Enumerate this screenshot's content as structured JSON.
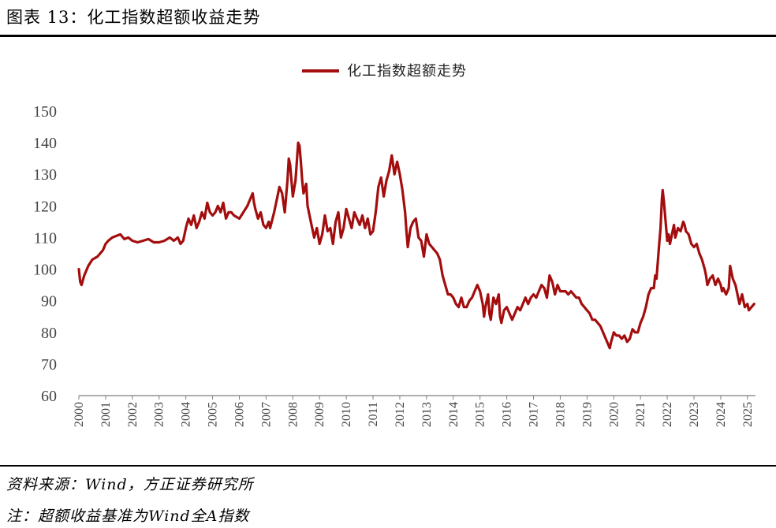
{
  "caption": "图表 13：化工指数超额收益走势",
  "source_note": "资料来源：Wind，方正证券研究所",
  "footnote": "注：超额收益基准为Wind全A指数",
  "colors": {
    "series": "#a30d0d",
    "axis": "#7f7f7f"
  },
  "chart_data": {
    "type": "line",
    "title": "",
    "xlabel": "",
    "ylabel": "",
    "legend": {
      "position": "top-center"
    },
    "grid": false,
    "ylim": [
      60,
      150
    ],
    "yticks": [
      60,
      70,
      80,
      90,
      100,
      110,
      120,
      130,
      140,
      150
    ],
    "xlim": [
      2000,
      2025.3
    ],
    "xticks": [
      "2000",
      "2001",
      "2002",
      "2003",
      "2004",
      "2005",
      "2006",
      "2007",
      "2008",
      "2009",
      "2010",
      "2011",
      "2012",
      "2013",
      "2014",
      "2015",
      "2016",
      "2017",
      "2018",
      "2019",
      "2020",
      "2021",
      "2022",
      "2023",
      "2024",
      "2025"
    ],
    "series": [
      {
        "name": "化工指数超额走势",
        "color": "#a30d0d",
        "points": [
          [
            2000.0,
            100
          ],
          [
            2000.05,
            96
          ],
          [
            2000.1,
            95
          ],
          [
            2000.2,
            98
          ],
          [
            2000.35,
            101
          ],
          [
            2000.5,
            103
          ],
          [
            2000.7,
            104
          ],
          [
            2000.9,
            106
          ],
          [
            2001.0,
            108
          ],
          [
            2001.1,
            109
          ],
          [
            2001.25,
            110
          ],
          [
            2001.4,
            110.5
          ],
          [
            2001.55,
            111
          ],
          [
            2001.7,
            109.5
          ],
          [
            2001.85,
            110
          ],
          [
            2002.0,
            109
          ],
          [
            2002.2,
            108.5
          ],
          [
            2002.4,
            109
          ],
          [
            2002.6,
            109.5
          ],
          [
            2002.8,
            108.5
          ],
          [
            2003.0,
            108.5
          ],
          [
            2003.2,
            109
          ],
          [
            2003.4,
            110
          ],
          [
            2003.55,
            109
          ],
          [
            2003.7,
            110
          ],
          [
            2003.8,
            108
          ],
          [
            2003.9,
            109
          ],
          [
            2004.0,
            113
          ],
          [
            2004.1,
            116
          ],
          [
            2004.2,
            114
          ],
          [
            2004.3,
            117
          ],
          [
            2004.4,
            113
          ],
          [
            2004.5,
            115
          ],
          [
            2004.6,
            118
          ],
          [
            2004.7,
            116
          ],
          [
            2004.8,
            121
          ],
          [
            2004.9,
            118
          ],
          [
            2005.0,
            117
          ],
          [
            2005.1,
            118
          ],
          [
            2005.2,
            120
          ],
          [
            2005.3,
            118
          ],
          [
            2005.4,
            121
          ],
          [
            2005.5,
            116
          ],
          [
            2005.6,
            118
          ],
          [
            2005.7,
            118
          ],
          [
            2005.8,
            117
          ],
          [
            2006.0,
            116
          ],
          [
            2006.15,
            118
          ],
          [
            2006.3,
            120
          ],
          [
            2006.4,
            122
          ],
          [
            2006.5,
            124
          ],
          [
            2006.55,
            121
          ],
          [
            2006.6,
            119
          ],
          [
            2006.7,
            116
          ],
          [
            2006.8,
            118
          ],
          [
            2006.9,
            114
          ],
          [
            2007.0,
            113
          ],
          [
            2007.1,
            115
          ],
          [
            2007.15,
            113
          ],
          [
            2007.3,
            118
          ],
          [
            2007.4,
            122
          ],
          [
            2007.5,
            126
          ],
          [
            2007.6,
            124
          ],
          [
            2007.7,
            118
          ],
          [
            2007.8,
            128
          ],
          [
            2007.85,
            135
          ],
          [
            2007.9,
            133
          ],
          [
            2008.0,
            123
          ],
          [
            2008.1,
            128
          ],
          [
            2008.2,
            140
          ],
          [
            2008.25,
            139
          ],
          [
            2008.3,
            134
          ],
          [
            2008.35,
            128
          ],
          [
            2008.4,
            124
          ],
          [
            2008.5,
            127
          ],
          [
            2008.55,
            120
          ],
          [
            2008.6,
            118
          ],
          [
            2008.7,
            114
          ],
          [
            2008.8,
            110
          ],
          [
            2008.9,
            113
          ],
          [
            2009.0,
            108
          ],
          [
            2009.1,
            111
          ],
          [
            2009.2,
            117
          ],
          [
            2009.3,
            112
          ],
          [
            2009.4,
            113
          ],
          [
            2009.5,
            108
          ],
          [
            2009.6,
            115
          ],
          [
            2009.7,
            118
          ],
          [
            2009.75,
            114
          ],
          [
            2009.8,
            110
          ],
          [
            2009.9,
            113
          ],
          [
            2010.0,
            119
          ],
          [
            2010.1,
            116
          ],
          [
            2010.2,
            113
          ],
          [
            2010.3,
            118
          ],
          [
            2010.4,
            116
          ],
          [
            2010.5,
            114
          ],
          [
            2010.6,
            117
          ],
          [
            2010.7,
            113
          ],
          [
            2010.8,
            116
          ],
          [
            2010.9,
            111
          ],
          [
            2011.0,
            112
          ],
          [
            2011.1,
            118
          ],
          [
            2011.2,
            126
          ],
          [
            2011.3,
            129
          ],
          [
            2011.4,
            123
          ],
          [
            2011.5,
            128
          ],
          [
            2011.6,
            131
          ],
          [
            2011.7,
            136
          ],
          [
            2011.8,
            130
          ],
          [
            2011.9,
            134
          ],
          [
            2012.0,
            130
          ],
          [
            2012.1,
            125
          ],
          [
            2012.2,
            118
          ],
          [
            2012.25,
            112
          ],
          [
            2012.3,
            107
          ],
          [
            2012.4,
            113
          ],
          [
            2012.5,
            115
          ],
          [
            2012.6,
            116
          ],
          [
            2012.7,
            110
          ],
          [
            2012.8,
            109
          ],
          [
            2012.9,
            104
          ],
          [
            2013.0,
            111
          ],
          [
            2013.1,
            108
          ],
          [
            2013.2,
            107
          ],
          [
            2013.3,
            106
          ],
          [
            2013.4,
            105
          ],
          [
            2013.5,
            103
          ],
          [
            2013.6,
            98
          ],
          [
            2013.7,
            95
          ],
          [
            2013.8,
            92
          ],
          [
            2013.9,
            92
          ],
          [
            2014.0,
            91
          ],
          [
            2014.1,
            89
          ],
          [
            2014.2,
            88
          ],
          [
            2014.3,
            91
          ],
          [
            2014.4,
            88
          ],
          [
            2014.5,
            88
          ],
          [
            2014.6,
            90
          ],
          [
            2014.7,
            91
          ],
          [
            2014.8,
            93
          ],
          [
            2014.9,
            95
          ],
          [
            2015.0,
            93
          ],
          [
            2015.1,
            89
          ],
          [
            2015.15,
            85
          ],
          [
            2015.2,
            88
          ],
          [
            2015.3,
            92
          ],
          [
            2015.35,
            86
          ],
          [
            2015.4,
            84
          ],
          [
            2015.5,
            91
          ],
          [
            2015.6,
            89
          ],
          [
            2015.7,
            92
          ],
          [
            2015.75,
            85
          ],
          [
            2015.8,
            83
          ],
          [
            2015.9,
            87
          ],
          [
            2016.0,
            88
          ],
          [
            2016.1,
            86
          ],
          [
            2016.2,
            84
          ],
          [
            2016.3,
            86
          ],
          [
            2016.4,
            88
          ],
          [
            2016.5,
            87
          ],
          [
            2016.6,
            89
          ],
          [
            2016.7,
            91
          ],
          [
            2016.8,
            89
          ],
          [
            2016.9,
            91
          ],
          [
            2017.0,
            92
          ],
          [
            2017.1,
            91
          ],
          [
            2017.2,
            93
          ],
          [
            2017.3,
            95
          ],
          [
            2017.4,
            94
          ],
          [
            2017.5,
            91
          ],
          [
            2017.6,
            98
          ],
          [
            2017.7,
            96
          ],
          [
            2017.8,
            92
          ],
          [
            2017.9,
            95
          ],
          [
            2018.0,
            93
          ],
          [
            2018.1,
            93
          ],
          [
            2018.2,
            93
          ],
          [
            2018.3,
            92
          ],
          [
            2018.4,
            93
          ],
          [
            2018.5,
            92
          ],
          [
            2018.6,
            91
          ],
          [
            2018.7,
            91
          ],
          [
            2018.8,
            89
          ],
          [
            2018.9,
            88
          ],
          [
            2019.0,
            87
          ],
          [
            2019.1,
            86
          ],
          [
            2019.2,
            84
          ],
          [
            2019.3,
            84
          ],
          [
            2019.4,
            83
          ],
          [
            2019.5,
            82
          ],
          [
            2019.6,
            80
          ],
          [
            2019.7,
            78
          ],
          [
            2019.8,
            76
          ],
          [
            2019.85,
            75
          ],
          [
            2019.9,
            77
          ],
          [
            2020.0,
            80
          ],
          [
            2020.1,
            79
          ],
          [
            2020.2,
            79
          ],
          [
            2020.3,
            78
          ],
          [
            2020.4,
            79
          ],
          [
            2020.5,
            77
          ],
          [
            2020.6,
            78
          ],
          [
            2020.7,
            81
          ],
          [
            2020.8,
            80
          ],
          [
            2020.9,
            80
          ],
          [
            2021.0,
            83
          ],
          [
            2021.1,
            85
          ],
          [
            2021.2,
            88
          ],
          [
            2021.3,
            92
          ],
          [
            2021.4,
            94
          ],
          [
            2021.5,
            94
          ],
          [
            2021.55,
            98
          ],
          [
            2021.6,
            97
          ],
          [
            2021.7,
            108
          ],
          [
            2021.75,
            113
          ],
          [
            2021.8,
            122
          ],
          [
            2021.83,
            125
          ],
          [
            2021.88,
            121
          ],
          [
            2021.95,
            114
          ],
          [
            2022.0,
            109
          ],
          [
            2022.05,
            111
          ],
          [
            2022.1,
            108
          ],
          [
            2022.2,
            112
          ],
          [
            2022.25,
            114
          ],
          [
            2022.3,
            110
          ],
          [
            2022.4,
            113
          ],
          [
            2022.5,
            112
          ],
          [
            2022.6,
            115
          ],
          [
            2022.65,
            114
          ],
          [
            2022.7,
            112
          ],
          [
            2022.8,
            111
          ],
          [
            2022.9,
            108
          ],
          [
            2023.0,
            107
          ],
          [
            2023.1,
            108
          ],
          [
            2023.2,
            105
          ],
          [
            2023.3,
            103
          ],
          [
            2023.4,
            100
          ],
          [
            2023.45,
            98
          ],
          [
            2023.5,
            95
          ],
          [
            2023.6,
            97
          ],
          [
            2023.7,
            98
          ],
          [
            2023.8,
            95
          ],
          [
            2023.9,
            97
          ],
          [
            2024.0,
            95
          ],
          [
            2024.05,
            93
          ],
          [
            2024.1,
            94
          ],
          [
            2024.2,
            92
          ],
          [
            2024.3,
            94
          ],
          [
            2024.35,
            101
          ],
          [
            2024.45,
            97
          ],
          [
            2024.55,
            95
          ],
          [
            2024.65,
            91
          ],
          [
            2024.7,
            89
          ],
          [
            2024.8,
            92
          ],
          [
            2024.85,
            90
          ],
          [
            2024.9,
            88
          ],
          [
            2025.0,
            89
          ],
          [
            2025.05,
            87
          ],
          [
            2025.15,
            88
          ],
          [
            2025.25,
            89
          ]
        ]
      }
    ]
  }
}
